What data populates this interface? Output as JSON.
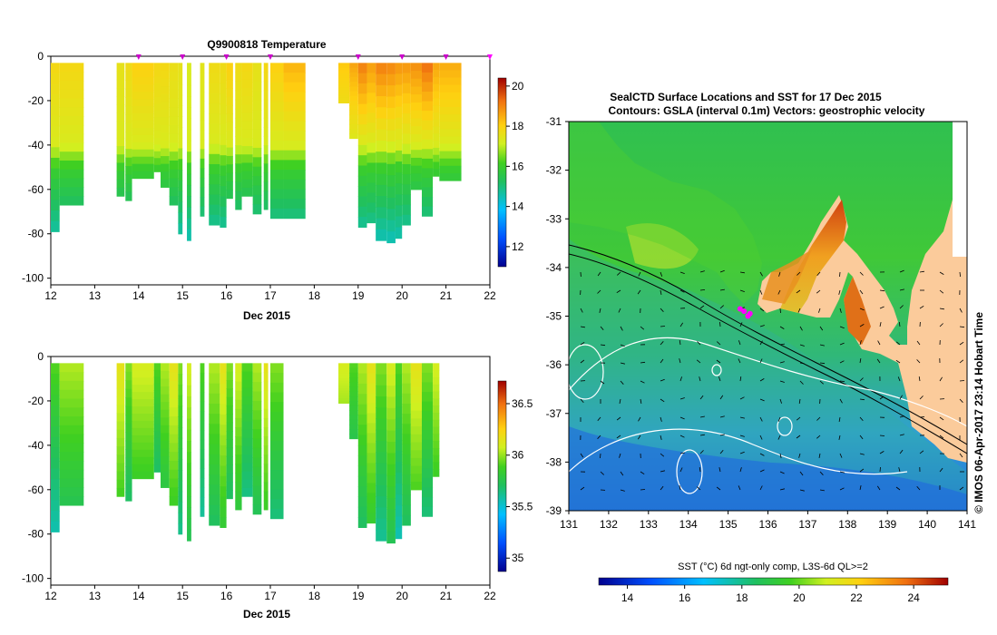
{
  "charts": {
    "temperature": {
      "title": "Q9900818  Temperature",
      "xlabel": "Dec 2015",
      "x_ticks": [
        "12",
        "13",
        "14",
        "15",
        "16",
        "17",
        "18",
        "19",
        "20",
        "21",
        "22"
      ],
      "y_ticks": [
        "0",
        "-20",
        "-40",
        "-60",
        "-80",
        "-100"
      ],
      "colorbar_ticks": [
        "20",
        "18",
        "16",
        "14",
        "12"
      ]
    },
    "salinity": {
      "xlabel": "Dec 2015",
      "x_ticks": [
        "12",
        "13",
        "14",
        "15",
        "16",
        "17",
        "18",
        "19",
        "20",
        "21",
        "22"
      ],
      "y_ticks": [
        "0",
        "-20",
        "-40",
        "-60",
        "-80",
        "-100"
      ],
      "colorbar_ticks": [
        "36.5",
        "36",
        "35.5",
        "35"
      ]
    },
    "map": {
      "title_line1": "SealCTD Surface Locations and SST for 17 Dec 2015",
      "title_line2": "Contours: GSLA (interval 0.1m) Vectors: geostrophic velocity",
      "x_ticks": [
        "131",
        "132",
        "133",
        "134",
        "135",
        "136",
        "137",
        "138",
        "139",
        "140",
        "141"
      ],
      "y_ticks": [
        "-31",
        "-32",
        "-33",
        "-34",
        "-35",
        "-36",
        "-37",
        "-38",
        "-39"
      ],
      "credit": "© IMOS 06-Apr-2017 23:14 Hobart Time",
      "colorbar_label": "SST (°C) 6d ngt-only comp, L3S-6d QL>=2",
      "colorbar_ticks": [
        "14",
        "16",
        "18",
        "20",
        "22",
        "24"
      ]
    }
  },
  "chart_data": [
    {
      "type": "heatmap",
      "title": "Q9900818  Temperature",
      "xlabel": "Dec 2015",
      "xlim": [
        12,
        22
      ],
      "ylim": [
        -100,
        0
      ],
      "colorbar_range": [
        11,
        20
      ],
      "profiles": [
        {
          "x": 12.0,
          "w": 0.2,
          "bottom": -79,
          "t_surf": 17.6
        },
        {
          "x": 12.2,
          "w": 0.55,
          "bottom": -67,
          "t_surf": 17.6
        },
        {
          "x": 13.5,
          "w": 0.18,
          "bottom": -63,
          "t_surf": 17.3
        },
        {
          "x": 13.7,
          "w": 0.15,
          "bottom": -65,
          "t_surf": 17.5
        },
        {
          "x": 13.85,
          "w": 0.5,
          "bottom": -55,
          "t_surf": 17.8
        },
        {
          "x": 14.35,
          "w": 0.15,
          "bottom": -52,
          "t_surf": 17.6
        },
        {
          "x": 14.5,
          "w": 0.2,
          "bottom": -59,
          "t_surf": 17.6
        },
        {
          "x": 14.7,
          "w": 0.2,
          "bottom": -67,
          "t_surf": 17.4
        },
        {
          "x": 14.9,
          "w": 0.1,
          "bottom": -80,
          "t_surf": 17.3
        },
        {
          "x": 15.1,
          "w": 0.1,
          "bottom": -83,
          "t_surf": 17.0
        },
        {
          "x": 15.4,
          "w": 0.1,
          "bottom": -72,
          "t_surf": 17.2
        },
        {
          "x": 15.6,
          "w": 0.25,
          "bottom": -76,
          "t_surf": 17.5
        },
        {
          "x": 15.85,
          "w": 0.15,
          "bottom": -77,
          "t_surf": 17.5
        },
        {
          "x": 16.0,
          "w": 0.15,
          "bottom": -64,
          "t_surf": 17.8
        },
        {
          "x": 16.2,
          "w": 0.15,
          "bottom": -69,
          "t_surf": 17.5
        },
        {
          "x": 16.35,
          "w": 0.25,
          "bottom": -63,
          "t_surf": 17.6
        },
        {
          "x": 16.6,
          "w": 0.2,
          "bottom": -71,
          "t_surf": 17.3
        },
        {
          "x": 16.85,
          "w": 0.1,
          "bottom": -69,
          "t_surf": 17.6
        },
        {
          "x": 17.0,
          "w": 0.3,
          "bottom": -73,
          "t_surf": 17.8
        },
        {
          "x": 17.3,
          "w": 0.5,
          "bottom": -73,
          "t_surf": 18.2
        },
        {
          "x": 18.55,
          "w": 0.25,
          "bottom": -21,
          "t_surf": 17.9
        },
        {
          "x": 18.8,
          "w": 0.2,
          "bottom": -37,
          "t_surf": 18.4
        },
        {
          "x": 19.0,
          "w": 0.2,
          "bottom": -77,
          "t_surf": 18.9
        },
        {
          "x": 19.2,
          "w": 0.2,
          "bottom": -75,
          "t_surf": 18.5
        },
        {
          "x": 19.4,
          "w": 0.25,
          "bottom": -83,
          "t_surf": 18.9
        },
        {
          "x": 19.65,
          "w": 0.2,
          "bottom": -84,
          "t_surf": 18.8
        },
        {
          "x": 19.85,
          "w": 0.15,
          "bottom": -82,
          "t_surf": 18.6
        },
        {
          "x": 20.0,
          "w": 0.2,
          "bottom": -76,
          "t_surf": 18.6
        },
        {
          "x": 20.2,
          "w": 0.25,
          "bottom": -60,
          "t_surf": 18.7
        },
        {
          "x": 20.45,
          "w": 0.25,
          "bottom": -72,
          "t_surf": 19.1
        },
        {
          "x": 20.7,
          "w": 0.15,
          "bottom": -54,
          "t_surf": 18.4
        },
        {
          "x": 20.85,
          "w": 0.5,
          "bottom": -56,
          "t_surf": 18.3
        }
      ],
      "surface_markers": [
        14,
        15,
        16,
        17,
        19,
        20,
        21,
        22
      ]
    },
    {
      "type": "heatmap",
      "title": "",
      "xlabel": "Dec 2015",
      "xlim": [
        12,
        22
      ],
      "ylim": [
        -100,
        0
      ],
      "colorbar_range": [
        34.9,
        36.7
      ],
      "profiles": [
        {
          "x": 12.0,
          "w": 0.2,
          "bottom": -79
        },
        {
          "x": 12.2,
          "w": 0.55,
          "bottom": -67
        },
        {
          "x": 13.5,
          "w": 0.18,
          "bottom": -63
        },
        {
          "x": 13.7,
          "w": 0.15,
          "bottom": -65
        },
        {
          "x": 13.85,
          "w": 0.5,
          "bottom": -55
        },
        {
          "x": 14.35,
          "w": 0.15,
          "bottom": -52
        },
        {
          "x": 14.5,
          "w": 0.2,
          "bottom": -59
        },
        {
          "x": 14.7,
          "w": 0.2,
          "bottom": -67
        },
        {
          "x": 14.9,
          "w": 0.1,
          "bottom": -80
        },
        {
          "x": 15.1,
          "w": 0.1,
          "bottom": -83
        },
        {
          "x": 15.4,
          "w": 0.1,
          "bottom": -72
        },
        {
          "x": 15.6,
          "w": 0.25,
          "bottom": -76
        },
        {
          "x": 15.85,
          "w": 0.15,
          "bottom": -77
        },
        {
          "x": 16.0,
          "w": 0.15,
          "bottom": -64
        },
        {
          "x": 16.2,
          "w": 0.15,
          "bottom": -69
        },
        {
          "x": 16.35,
          "w": 0.25,
          "bottom": -63
        },
        {
          "x": 16.6,
          "w": 0.2,
          "bottom": -71
        },
        {
          "x": 16.85,
          "w": 0.1,
          "bottom": -69
        },
        {
          "x": 17.0,
          "w": 0.3,
          "bottom": -73
        },
        {
          "x": 18.55,
          "w": 0.25,
          "bottom": -21
        },
        {
          "x": 18.8,
          "w": 0.2,
          "bottom": -37
        },
        {
          "x": 19.0,
          "w": 0.2,
          "bottom": -77
        },
        {
          "x": 19.2,
          "w": 0.2,
          "bottom": -75
        },
        {
          "x": 19.4,
          "w": 0.25,
          "bottom": -83
        },
        {
          "x": 19.65,
          "w": 0.2,
          "bottom": -84
        },
        {
          "x": 19.85,
          "w": 0.15,
          "bottom": -82
        },
        {
          "x": 20.0,
          "w": 0.2,
          "bottom": -76
        },
        {
          "x": 20.2,
          "w": 0.25,
          "bottom": -60
        },
        {
          "x": 20.45,
          "w": 0.25,
          "bottom": -72
        },
        {
          "x": 20.7,
          "w": 0.15,
          "bottom": -54
        }
      ]
    },
    {
      "type": "heatmap",
      "title": "SealCTD Surface Locations and SST for 17 Dec 2015",
      "subtitle": "Contours: GSLA (interval 0.1m) Vectors: geostrophic velocity",
      "xlim": [
        131,
        141
      ],
      "ylim": [
        -39,
        -31
      ],
      "colorbar_range": [
        13,
        25
      ],
      "land_color": "#fbcb9b",
      "ctd_locations": [
        [
          135.4,
          -34.9
        ],
        [
          135.5,
          -35.0
        ],
        [
          135.3,
          -34.85
        ],
        [
          135.55,
          -34.95
        ]
      ]
    }
  ]
}
